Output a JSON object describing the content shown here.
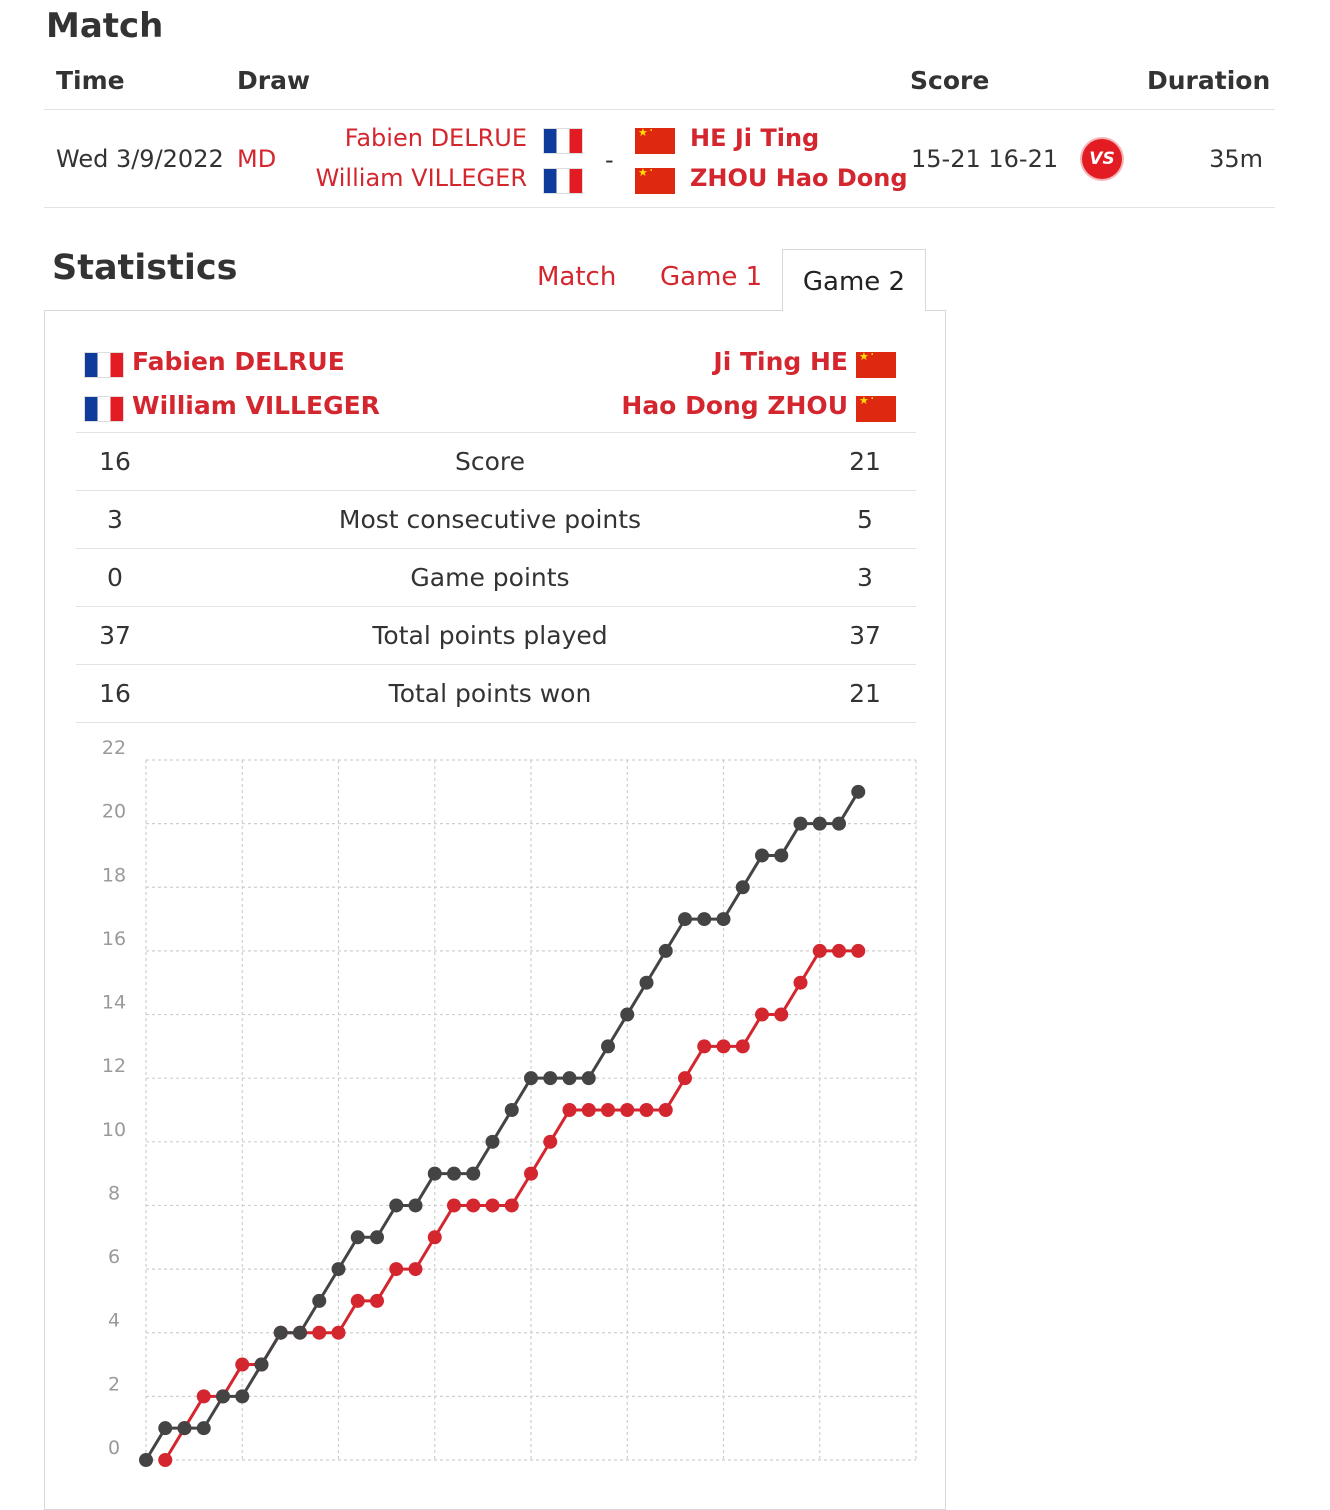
{
  "match": {
    "heading": "Match",
    "headers": {
      "time": "Time",
      "draw": "Draw",
      "score": "Score",
      "duration": "Duration"
    },
    "time": "Wed 3/9/2022",
    "draw": "MD",
    "team1": [
      "Fabien DELRUE",
      "William VILLEGER"
    ],
    "separator": "-",
    "team2": [
      "HE Ji Ting",
      "ZHOU Hao Dong"
    ],
    "score": "15-21 16-21",
    "vs_badge": "VS",
    "duration": "35m"
  },
  "statistics": {
    "heading": "Statistics",
    "tabs": [
      "Match",
      "Game 1",
      "Game 2"
    ],
    "active_tab": "Game 2",
    "left_players": [
      "Fabien DELRUE",
      "William VILLEGER"
    ],
    "right_players": [
      "Ji Ting HE",
      "Hao Dong ZHOU"
    ],
    "rows": [
      {
        "left": "16",
        "label": "Score",
        "right": "21"
      },
      {
        "left": "3",
        "label": "Most consecutive points",
        "right": "5"
      },
      {
        "left": "0",
        "label": "Game points",
        "right": "3"
      },
      {
        "left": "37",
        "label": "Total points played",
        "right": "37"
      },
      {
        "left": "16",
        "label": "Total points won",
        "right": "21"
      }
    ]
  },
  "chart_data": {
    "type": "line",
    "title": "",
    "xlabel": "",
    "ylabel": "",
    "ylim": [
      0,
      22
    ],
    "yticks": [
      "0",
      "2",
      "4",
      "6",
      "8",
      "10",
      "12",
      "14",
      "16",
      "18",
      "20",
      "22"
    ],
    "xlim": [
      0,
      40
    ],
    "grid": true,
    "series": [
      {
        "name": "Ji Ting HE / Hao Dong ZHOU",
        "color": "#444444",
        "x": [
          0,
          1,
          2,
          3,
          4,
          5,
          6,
          7,
          8,
          9,
          10,
          11,
          12,
          13,
          14,
          15,
          16,
          17,
          18,
          19,
          20,
          21,
          22,
          23,
          24,
          25,
          26,
          27,
          28,
          29,
          30,
          31,
          32,
          33,
          34,
          35,
          36,
          37
        ],
        "values": [
          0,
          1,
          1,
          1,
          2,
          2,
          3,
          4,
          4,
          5,
          6,
          7,
          7,
          8,
          8,
          9,
          9,
          9,
          10,
          11,
          12,
          12,
          12,
          12,
          13,
          14,
          15,
          16,
          17,
          17,
          17,
          18,
          19,
          19,
          20,
          20,
          20,
          21
        ]
      },
      {
        "name": "Fabien DELRUE / William VILLEGER",
        "color": "#d4262e",
        "x": [
          1,
          2,
          3,
          4,
          5,
          6,
          7,
          8,
          9,
          10,
          11,
          12,
          13,
          14,
          15,
          16,
          17,
          18,
          19,
          20,
          21,
          22,
          23,
          24,
          25,
          26,
          27,
          28,
          29,
          30,
          31,
          32,
          33,
          34,
          35,
          36,
          37
        ],
        "values": [
          0,
          1,
          2,
          2,
          3,
          3,
          4,
          4,
          4,
          4,
          5,
          5,
          6,
          6,
          7,
          8,
          8,
          8,
          8,
          9,
          10,
          11,
          11,
          11,
          11,
          11,
          11,
          12,
          13,
          13,
          13,
          14,
          14,
          15,
          16,
          16,
          16
        ]
      }
    ]
  },
  "colors": {
    "accent": "#d4262e",
    "dark": "#444444"
  }
}
